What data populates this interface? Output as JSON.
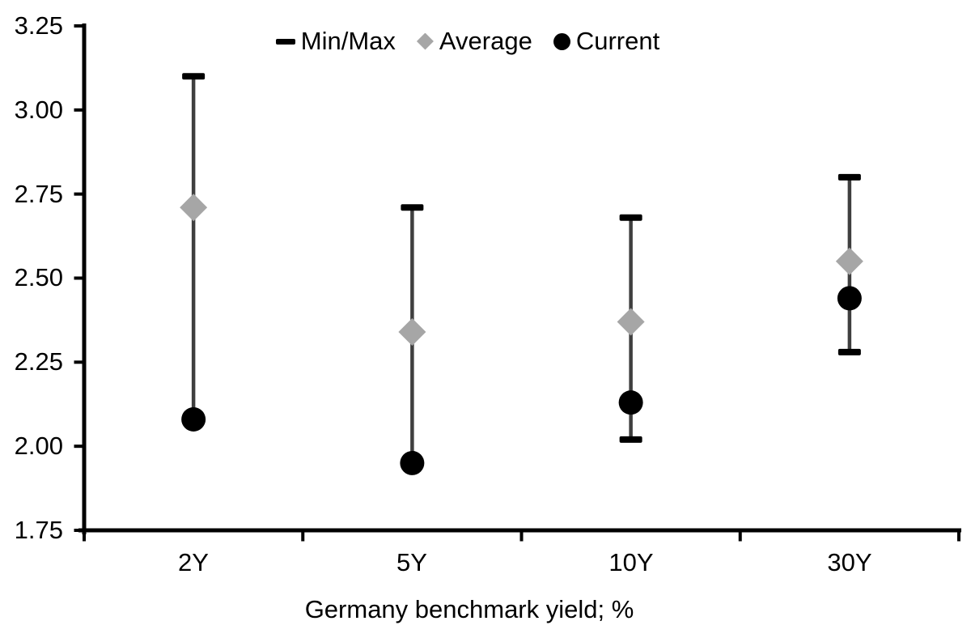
{
  "chart_data": {
    "type": "scatter",
    "subtype": "min-max-range-with-markers",
    "title": "",
    "xlabel": "Germany benchmark yield; %",
    "ylabel": "",
    "categories": [
      "2Y",
      "5Y",
      "10Y",
      "30Y"
    ],
    "ylim": [
      1.75,
      3.25
    ],
    "yticks": [
      1.75,
      2.0,
      2.25,
      2.5,
      2.75,
      3.0,
      3.25
    ],
    "ytick_labels": [
      "1.75",
      "2.00",
      "2.25",
      "2.50",
      "2.75",
      "3.00",
      "3.25"
    ],
    "grid": false,
    "legend_position": "top-center",
    "colors": {
      "axis": "#000000",
      "range_line": "#3f3f3f",
      "cap": "#000000",
      "average": "#a6a6a6",
      "current": "#000000"
    },
    "series": [
      {
        "name": "Min/Max",
        "marker": "dash-cap-range",
        "color": "#000000",
        "line_color": "#3f3f3f",
        "min": [
          2.08,
          1.95,
          2.02,
          2.28
        ],
        "max": [
          3.1,
          2.71,
          2.68,
          2.8
        ]
      },
      {
        "name": "Average",
        "marker": "diamond",
        "color": "#a6a6a6",
        "values": [
          2.71,
          2.34,
          2.37,
          2.55
        ]
      },
      {
        "name": "Current",
        "marker": "circle",
        "color": "#000000",
        "values": [
          2.08,
          1.95,
          2.13,
          2.44
        ]
      }
    ]
  }
}
